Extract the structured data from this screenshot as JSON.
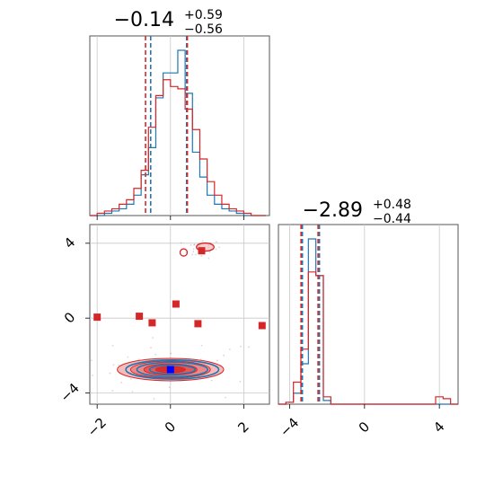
{
  "chart_data": {
    "type": "corner",
    "series": [
      {
        "name": "",
        "color": "#1f77b4"
      },
      {
        "name": "",
        "color": "#d62728"
      }
    ],
    "params": [
      {
        "title": {
          "median": "−0.14",
          "upper": "+0.59",
          "lower": "−0.56"
        },
        "range": [
          -2.2,
          2.7
        ],
        "ticks": [
          -2,
          0,
          2
        ],
        "tick_labels": [
          "−2",
          "0",
          "2"
        ],
        "hist": {
          "bin_edges": [
            -2.2,
            -2.0,
            -1.8,
            -1.6,
            -1.4,
            -1.2,
            -1.0,
            -0.8,
            -0.6,
            -0.4,
            -0.2,
            0.0,
            0.2,
            0.4,
            0.6,
            0.8,
            1.0,
            1.2,
            1.4,
            1.6,
            1.8,
            2.0,
            2.2,
            2.4,
            2.6
          ],
          "blue_counts": [
            0,
            0,
            1,
            2,
            3,
            5,
            9,
            18,
            30,
            52,
            63,
            63,
            73,
            54,
            28,
            17,
            9,
            5,
            3,
            2,
            1,
            0,
            0,
            0
          ],
          "red_counts": [
            0,
            1,
            2,
            3,
            5,
            7,
            12,
            20,
            39,
            53,
            60,
            57,
            56,
            47,
            38,
            25,
            15,
            9,
            5,
            3,
            2,
            1,
            0,
            0
          ]
        },
        "quantile_lines": {
          "blue": [
            -0.54,
            0.44
          ],
          "red": [
            -0.68,
            0.46
          ]
        }
      },
      {
        "title": {
          "median": "−2.89",
          "upper": "+0.48",
          "lower": "−0.44"
        },
        "range": [
          -4.6,
          5.0
        ],
        "ticks": [
          -4,
          0,
          4
        ],
        "tick_labels": [
          "−4",
          "0",
          "4"
        ],
        "hist": {
          "bin_edges": [
            -4.6,
            -4.2,
            -3.8,
            -3.4,
            -3.0,
            -2.6,
            -2.2,
            -1.8,
            -1.4,
            -1.0,
            -0.6,
            -0.2,
            0.2,
            0.6,
            1.0,
            1.4,
            1.8,
            2.2,
            2.6,
            3.0,
            3.4,
            3.8,
            4.2,
            4.6,
            5.0
          ],
          "blue_counts": [
            0,
            1,
            6,
            22,
            90,
            70,
            2,
            0,
            0,
            0,
            0,
            0,
            0,
            0,
            0,
            0,
            0,
            0,
            0,
            0,
            0,
            0,
            0,
            0
          ],
          "red_counts": [
            0,
            1,
            12,
            30,
            72,
            70,
            4,
            0,
            0,
            0,
            0,
            0,
            0,
            0,
            0,
            0,
            0,
            0,
            0,
            0,
            0,
            4,
            3,
            0
          ]
        },
        "quantile_lines": {
          "blue": [
            -3.32,
            -2.41
          ],
          "red": [
            -3.32,
            -2.41
          ]
        }
      }
    ],
    "joint": {
      "x_range": [
        -2.2,
        2.7
      ],
      "y_range": [
        -4.6,
        5.0
      ],
      "x_ticks": [
        -2,
        0,
        2
      ],
      "x_tick_labels": [
        "−2",
        "0",
        "2"
      ],
      "y_ticks": [
        -4,
        0,
        4
      ],
      "y_tick_labels": [
        "−4",
        "0",
        "4"
      ],
      "main_mode": {
        "center": [
          0.0,
          -2.75
        ],
        "spread": [
          1.45,
          0.6
        ]
      },
      "upper_mode": {
        "center": [
          0.85,
          3.7
        ],
        "spread": [
          0.3,
          0.18
        ]
      },
      "blue_marker": [
        0.0,
        -2.75
      ],
      "red_markers": [
        [
          -2.0,
          0.05
        ],
        [
          -0.85,
          0.1
        ],
        [
          -0.5,
          -0.25
        ],
        [
          0.15,
          0.75
        ],
        [
          0.75,
          -0.3
        ],
        [
          2.5,
          -0.4
        ],
        [
          0.85,
          3.6
        ]
      ]
    }
  }
}
